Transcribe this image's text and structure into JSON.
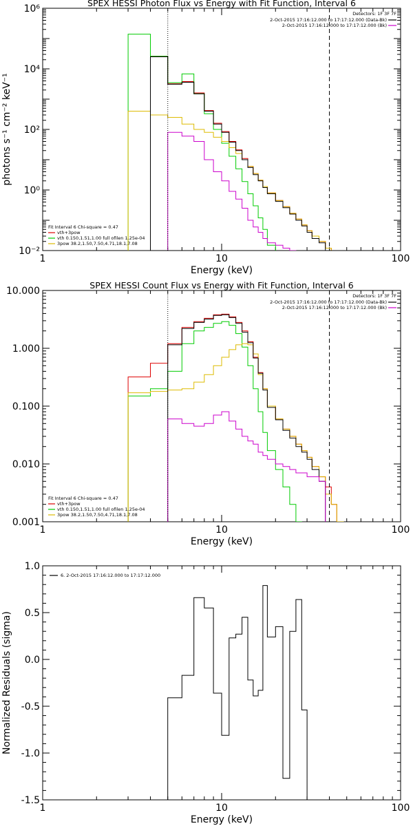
{
  "chart_data": [
    {
      "type": "line",
      "title": "SPEX HESSI Photon Flux vs Energy with Fit Function, Interval 6",
      "xlabel": "Energy (keV)",
      "ylabel": "photons s⁻¹ cm⁻² keV⁻¹",
      "xscale": "log",
      "yscale": "log",
      "xlim": [
        1,
        100
      ],
      "ylim": [
        0.01,
        1000000
      ],
      "x_ticks": [
        {
          "v": 1,
          "label": "1"
        },
        {
          "v": 10,
          "label": "10"
        },
        {
          "v": 100,
          "label": "100"
        }
      ],
      "y_ticks": [
        {
          "v": 0.01,
          "label": "10⁻²"
        },
        {
          "v": 1,
          "label": "10⁰"
        },
        {
          "v": 100,
          "label": "10²"
        },
        {
          "v": 10000,
          "label": "10⁴"
        },
        {
          "v": 1000000,
          "label": "10⁶"
        }
      ],
      "vlines": [
        {
          "x": 5,
          "style": "dotted"
        },
        {
          "x": 40,
          "style": "dashed"
        }
      ],
      "legend_top": {
        "header": "Detectors: 1F 3F 7F",
        "lines": [
          {
            "text": "2-Oct-2015 17:16:12.000 to 17:17:12.000 (Data-Bk)",
            "color": "#000000"
          },
          {
            "text": "2-Oct-2015 17:16:12.000 to 17:17:12.000 (Bk)",
            "color": "#cc00cc"
          }
        ]
      },
      "legend_bottom": {
        "header": "Fit Interval 6   Chi-square = 0.47",
        "lines": [
          {
            "text": "vth+3pow",
            "color": "#dd0000"
          },
          {
            "text": "vth 0.150,1.51,1.00  full ofilen 1.25e-04",
            "color": "#00cc00"
          },
          {
            "text": "3pow 38.2,1.50,7.50,4.71,18.1,7.08",
            "color": "#ddbb00"
          }
        ]
      },
      "edges": [
        3,
        4,
        5,
        6,
        7,
        8,
        9,
        10,
        11,
        12,
        13,
        14,
        15,
        16,
        17,
        18,
        20,
        22,
        24,
        26,
        28,
        30,
        32,
        35,
        38,
        41,
        44,
        48
      ],
      "series": [
        {
          "key": "vth+3pow",
          "color": "#dd0000",
          "values": [
            null,
            26000,
            3200,
            3800,
            1600,
            420,
            160,
            85,
            40,
            21,
            11,
            6,
            3.5,
            2.1,
            1.3,
            0.8,
            0.45,
            0.28,
            0.17,
            0.11,
            0.07,
            0.045,
            0.03,
            0.02,
            0.012,
            null,
            null
          ]
        },
        {
          "key": "vth",
          "color": "#00cc00",
          "values": [
            140000,
            26000,
            3500,
            6800,
            1500,
            330,
            100,
            35,
            13,
            5,
            1.9,
            0.75,
            0.3,
            0.12,
            0.05,
            0.015,
            null,
            null,
            null,
            null,
            null,
            null,
            null,
            null,
            null,
            null,
            null
          ]
        },
        {
          "key": "3pow",
          "color": "#ddbb00",
          "values": [
            400,
            300,
            250,
            150,
            100,
            80,
            55,
            40,
            25,
            16,
            10,
            6,
            3.5,
            2.1,
            1.3,
            0.8,
            0.45,
            0.28,
            0.17,
            0.11,
            0.07,
            0.045,
            0.03,
            0.02,
            0.012,
            null,
            null
          ]
        },
        {
          "key": "data",
          "color": "#000000",
          "values": [
            null,
            25000,
            3100,
            3600,
            1500,
            400,
            150,
            80,
            38,
            20,
            10,
            5.5,
            3.2,
            2,
            1.2,
            0.75,
            0.42,
            0.26,
            0.16,
            0.1,
            0.065,
            0.04,
            0.025,
            0.018,
            0.01,
            null,
            null
          ]
        },
        {
          "key": "bk",
          "color": "#cc00cc",
          "values": [
            null,
            null,
            80,
            60,
            40,
            10,
            4,
            2,
            0.9,
            0.5,
            0.25,
            0.1,
            0.06,
            0.04,
            0.025,
            0.018,
            0.015,
            0.012,
            0.01,
            null,
            null,
            null,
            null,
            null,
            null,
            null,
            null
          ]
        }
      ]
    },
    {
      "type": "line",
      "title": "SPEX HESSI Count Flux vs Energy with Fit Function, Interval 6",
      "xlabel": "Energy (keV)",
      "ylabel": "",
      "xscale": "log",
      "yscale": "log",
      "xlim": [
        1,
        100
      ],
      "ylim": [
        0.001,
        10
      ],
      "x_ticks": [
        {
          "v": 1,
          "label": "1"
        },
        {
          "v": 10,
          "label": "10"
        },
        {
          "v": 100,
          "label": "100"
        }
      ],
      "y_ticks": [
        {
          "v": 0.001,
          "label": "0.001"
        },
        {
          "v": 0.01,
          "label": "0.010"
        },
        {
          "v": 0.1,
          "label": "0.100"
        },
        {
          "v": 1,
          "label": "1.000"
        },
        {
          "v": 10,
          "label": "10.000"
        }
      ],
      "vlines": [
        {
          "x": 5,
          "style": "dotted"
        },
        {
          "x": 40,
          "style": "dashed"
        }
      ],
      "legend_top": {
        "header": "Detectors: 1F 3F 7F",
        "lines": [
          {
            "text": "2-Oct-2015 17:16:12.000 to 17:17:12.000 (Data-Bk)",
            "color": "#000000"
          },
          {
            "text": "2-Oct-2015 17:16:12.000 to 17:17:12.000 (Bk)",
            "color": "#cc00cc"
          }
        ]
      },
      "legend_bottom": {
        "header": "Fit Interval 6   Chi-square = 0.47",
        "lines": [
          {
            "text": "vth+3pow",
            "color": "#dd0000"
          },
          {
            "text": "vth 0.150,1.51,1.00  full ofilen 1.25e-04",
            "color": "#00cc00"
          },
          {
            "text": "3pow 38.2,1.50,7.50,4.71,18.1,7.08",
            "color": "#ddbb00"
          }
        ]
      },
      "edges": [
        3,
        4,
        5,
        6,
        7,
        8,
        9,
        10,
        11,
        12,
        13,
        14,
        15,
        16,
        17,
        18,
        20,
        22,
        24,
        26,
        28,
        30,
        32,
        35,
        38,
        41,
        44,
        48
      ],
      "series": [
        {
          "key": "vth+3pow",
          "color": "#dd0000",
          "values": [
            0.32,
            0.55,
            1.2,
            2.3,
            2.9,
            3.3,
            3.8,
            3.9,
            3.5,
            2.8,
            2,
            1.3,
            0.7,
            0.38,
            0.2,
            0.1,
            0.06,
            0.04,
            0.03,
            0.022,
            0.017,
            0.013,
            0.009,
            0.006,
            0.004,
            0.002,
            0.001
          ]
        },
        {
          "key": "vth",
          "color": "#00cc00",
          "values": [
            0.15,
            0.2,
            0.4,
            1.2,
            2,
            2.3,
            2.7,
            2.9,
            2.5,
            1.8,
            1.05,
            0.5,
            0.2,
            0.08,
            0.035,
            0.017,
            0.008,
            0.004,
            0.002,
            0.001,
            null,
            null,
            null,
            null,
            null,
            null,
            null
          ]
        },
        {
          "key": "3pow",
          "color": "#ddbb00",
          "values": [
            0.17,
            0.18,
            0.19,
            0.2,
            0.26,
            0.35,
            0.5,
            0.7,
            0.95,
            1.15,
            1.2,
            1.15,
            0.8,
            0.35,
            0.2,
            0.1,
            0.06,
            0.04,
            0.03,
            0.022,
            0.017,
            0.013,
            0.009,
            0.006,
            0.003,
            0.002,
            0.001
          ]
        },
        {
          "key": "data",
          "color": "#000000",
          "values": [
            null,
            null,
            1.15,
            2.2,
            2.8,
            3.2,
            3.7,
            3.8,
            3.4,
            2.7,
            1.9,
            1.25,
            0.68,
            0.37,
            0.19,
            0.095,
            0.058,
            0.038,
            0.028,
            0.02,
            0.016,
            0.012,
            0.008,
            0.005,
            null,
            null,
            null
          ]
        },
        {
          "key": "bk",
          "color": "#cc00cc",
          "values": [
            null,
            null,
            0.06,
            0.05,
            0.045,
            0.05,
            0.07,
            0.08,
            0.055,
            0.04,
            0.03,
            0.025,
            0.022,
            0.016,
            0.014,
            0.012,
            0.01,
            0.009,
            0.008,
            0.007,
            0.007,
            0.006,
            0.006,
            0.005,
            null,
            null,
            null
          ]
        }
      ]
    },
    {
      "type": "line",
      "title": "",
      "xlabel": "Energy (keV)",
      "ylabel": "Normalized Residuals (sigma)",
      "xscale": "log",
      "yscale": "linear",
      "xlim": [
        1,
        100
      ],
      "ylim": [
        -1.5,
        1
      ],
      "x_ticks": [
        {
          "v": 1,
          "label": "1"
        },
        {
          "v": 10,
          "label": "10"
        },
        {
          "v": 100,
          "label": "100"
        }
      ],
      "y_ticks": [
        {
          "v": -1.5,
          "label": "-1.5"
        },
        {
          "v": -1,
          "label": "-1.0"
        },
        {
          "v": -0.5,
          "label": "-0.5"
        },
        {
          "v": 0,
          "label": "0.0"
        },
        {
          "v": 0.5,
          "label": "0.5"
        },
        {
          "v": 1,
          "label": "1.0"
        }
      ],
      "legend": {
        "text": "6. 2-Oct-2015 17:16:12.000 to 17:17:12.000",
        "color": "#000000"
      },
      "edges": [
        5,
        6,
        7,
        8,
        9,
        10,
        11,
        12,
        13,
        14,
        15,
        16,
        17,
        18,
        20,
        22,
        24,
        26,
        28,
        30,
        32,
        35,
        38,
        41
      ],
      "values": [
        -0.41,
        -0.17,
        0.66,
        0.55,
        -0.36,
        -0.81,
        0.23,
        0.27,
        0.45,
        -0.22,
        -0.39,
        -0.33,
        0.79,
        0.24,
        0.35,
        -1.27,
        0.3,
        0.64,
        -0.54,
        -1.5,
        null,
        null,
        null
      ]
    }
  ]
}
